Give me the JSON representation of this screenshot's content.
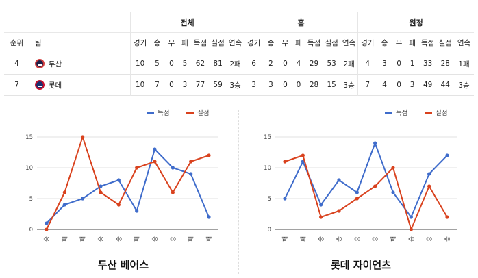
{
  "table": {
    "groups": {
      "total": "전체",
      "home": "홈",
      "away": "원정"
    },
    "headers": {
      "rank": "순위",
      "team": "팀",
      "cols": [
        "경기",
        "승",
        "무",
        "패",
        "득점",
        "실점",
        "연속"
      ]
    },
    "rows": [
      {
        "rank": "4",
        "team": "두산",
        "logo": "doosan-logo-icon",
        "total": [
          "10",
          "5",
          "0",
          "5",
          "62",
          "81",
          "2패"
        ],
        "home": [
          "6",
          "2",
          "0",
          "4",
          "29",
          "53",
          "2패"
        ],
        "away": [
          "4",
          "3",
          "0",
          "1",
          "33",
          "28",
          "1패"
        ]
      },
      {
        "rank": "7",
        "team": "롯데",
        "logo": "lotte-logo-icon",
        "total": [
          "10",
          "7",
          "0",
          "3",
          "77",
          "59",
          "3승"
        ],
        "home": [
          "3",
          "3",
          "0",
          "0",
          "28",
          "15",
          "3승"
        ],
        "away": [
          "7",
          "4",
          "0",
          "3",
          "49",
          "44",
          "3승"
        ]
      }
    ]
  },
  "chart_data": [
    {
      "type": "line",
      "title": "두산 베어스",
      "categories": [
        "승",
        "패",
        "패",
        "승",
        "승",
        "패",
        "승",
        "승",
        "패",
        "패"
      ],
      "series": [
        {
          "name": "득점",
          "color": "#3f6ccb",
          "values": [
            1,
            4,
            5,
            7,
            8,
            3,
            13,
            10,
            9,
            2
          ]
        },
        {
          "name": "실점",
          "color": "#d9421e",
          "values": [
            0,
            6,
            15,
            6,
            4,
            10,
            11,
            6,
            11,
            12
          ]
        }
      ],
      "y_ticks": [
        "0",
        "5",
        "10",
        "15"
      ],
      "ylim": [
        0,
        15
      ],
      "grid": true,
      "legend_position": "top-right"
    },
    {
      "type": "line",
      "title": "롯데 자이언츠",
      "categories": [
        "패",
        "패",
        "승",
        "승",
        "승",
        "승",
        "패",
        "승",
        "승",
        "승"
      ],
      "series": [
        {
          "name": "득점",
          "color": "#3f6ccb",
          "values": [
            5,
            11,
            4,
            8,
            6,
            14,
            6,
            2,
            9,
            12
          ]
        },
        {
          "name": "실점",
          "color": "#d9421e",
          "values": [
            11,
            12,
            2,
            3,
            5,
            7,
            10,
            0,
            7,
            2
          ]
        }
      ],
      "y_ticks": [
        "0",
        "5",
        "10",
        "15"
      ],
      "ylim": [
        0,
        15
      ],
      "grid": true,
      "legend_position": "top-right"
    }
  ]
}
